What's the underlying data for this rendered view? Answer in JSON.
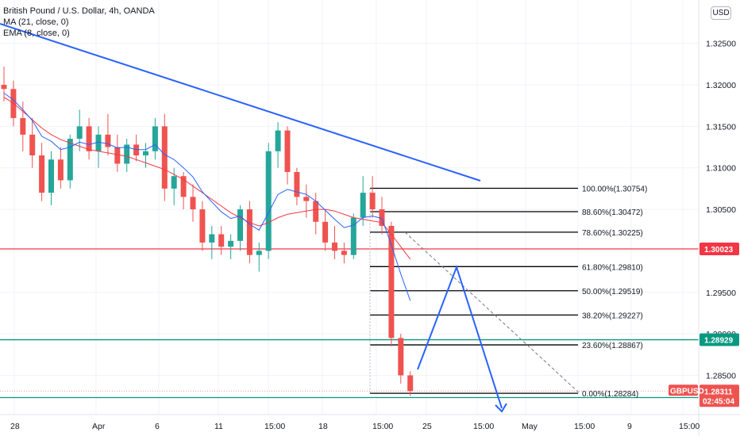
{
  "legend": {
    "symbol": "British Pound / U.S. Dollar, 4h, OANDA",
    "ma": "MA (21, close, 0)",
    "ema": "EMA (8, close, 0)"
  },
  "currency_button": "USD",
  "colors": {
    "up": "#26a69a",
    "down": "#ef5350",
    "ma": "#f23645",
    "ema": "#2962ff",
    "trendline": "#2962ff",
    "resistance": "#f23645",
    "support": "#089981",
    "fib": "#000000",
    "projection": "#2962ff"
  },
  "chart_data": {
    "type": "candlestick",
    "title": "British Pound / U.S. Dollar, 4h, OANDA",
    "ylim": [
      1.2775,
      1.3275
    ],
    "y_ticks": [
      "1.32500",
      "1.32000",
      "1.31500",
      "1.31000",
      "1.30500",
      "1.30000",
      "1.29500",
      "1.29000",
      "1.28500"
    ],
    "x_ticks": [
      "28",
      "Apr",
      "6",
      "11",
      "15:00",
      "18",
      "15:00",
      "25",
      "15:00",
      "May",
      "15:00",
      "9",
      "15:00"
    ],
    "indicators": [
      "MA (21, close, 0)",
      "EMA (8, close, 0)"
    ],
    "candles": [
      {
        "o": 1.32,
        "h": 1.3222,
        "l": 1.318,
        "c": 1.3195
      },
      {
        "o": 1.3195,
        "h": 1.3205,
        "l": 1.315,
        "c": 1.316
      },
      {
        "o": 1.316,
        "h": 1.318,
        "l": 1.312,
        "c": 1.314
      },
      {
        "o": 1.314,
        "h": 1.316,
        "l": 1.31,
        "c": 1.3115
      },
      {
        "o": 1.3115,
        "h": 1.313,
        "l": 1.306,
        "c": 1.307
      },
      {
        "o": 1.307,
        "h": 1.312,
        "l": 1.3055,
        "c": 1.311
      },
      {
        "o": 1.311,
        "h": 1.3125,
        "l": 1.3075,
        "c": 1.3085
      },
      {
        "o": 1.3085,
        "h": 1.314,
        "l": 1.3075,
        "c": 1.3135
      },
      {
        "o": 1.3135,
        "h": 1.317,
        "l": 1.312,
        "c": 1.315
      },
      {
        "o": 1.315,
        "h": 1.316,
        "l": 1.311,
        "c": 1.312
      },
      {
        "o": 1.312,
        "h": 1.315,
        "l": 1.31,
        "c": 1.314
      },
      {
        "o": 1.314,
        "h": 1.3165,
        "l": 1.3115,
        "c": 1.3125
      },
      {
        "o": 1.3125,
        "h": 1.314,
        "l": 1.3095,
        "c": 1.3105
      },
      {
        "o": 1.3105,
        "h": 1.3135,
        "l": 1.3095,
        "c": 1.3128
      },
      {
        "o": 1.3128,
        "h": 1.314,
        "l": 1.3108,
        "c": 1.3115
      },
      {
        "o": 1.3115,
        "h": 1.313,
        "l": 1.31,
        "c": 1.312
      },
      {
        "o": 1.312,
        "h": 1.316,
        "l": 1.311,
        "c": 1.315
      },
      {
        "o": 1.315,
        "h": 1.3165,
        "l": 1.306,
        "c": 1.3075
      },
      {
        "o": 1.3075,
        "h": 1.31,
        "l": 1.3055,
        "c": 1.309
      },
      {
        "o": 1.309,
        "h": 1.3095,
        "l": 1.305,
        "c": 1.3065
      },
      {
        "o": 1.3065,
        "h": 1.308,
        "l": 1.3035,
        "c": 1.305
      },
      {
        "o": 1.305,
        "h": 1.306,
        "l": 1.3,
        "c": 1.301
      },
      {
        "o": 1.301,
        "h": 1.303,
        "l": 1.299,
        "c": 1.302
      },
      {
        "o": 1.302,
        "h": 1.303,
        "l": 1.2995,
        "c": 1.3005
      },
      {
        "o": 1.3005,
        "h": 1.302,
        "l": 1.299,
        "c": 1.3012
      },
      {
        "o": 1.3012,
        "h": 1.3055,
        "l": 1.3,
        "c": 1.305
      },
      {
        "o": 1.305,
        "h": 1.306,
        "l": 1.2985,
        "c": 1.2995
      },
      {
        "o": 1.2995,
        "h": 1.301,
        "l": 1.2975,
        "c": 1.3
      },
      {
        "o": 1.3,
        "h": 1.313,
        "l": 1.299,
        "c": 1.312
      },
      {
        "o": 1.312,
        "h": 1.3155,
        "l": 1.31,
        "c": 1.3145
      },
      {
        "o": 1.3145,
        "h": 1.315,
        "l": 1.308,
        "c": 1.3095
      },
      {
        "o": 1.3095,
        "h": 1.31,
        "l": 1.3055,
        "c": 1.3065
      },
      {
        "o": 1.3065,
        "h": 1.308,
        "l": 1.304,
        "c": 1.306
      },
      {
        "o": 1.306,
        "h": 1.307,
        "l": 1.302,
        "c": 1.3035
      },
      {
        "o": 1.3035,
        "h": 1.305,
        "l": 1.3,
        "c": 1.301
      },
      {
        "o": 1.301,
        "h": 1.303,
        "l": 1.299,
        "c": 1.3
      },
      {
        "o": 1.3,
        "h": 1.301,
        "l": 1.2985,
        "c": 1.2995
      },
      {
        "o": 1.2995,
        "h": 1.3045,
        "l": 1.299,
        "c": 1.304
      },
      {
        "o": 1.304,
        "h": 1.309,
        "l": 1.303,
        "c": 1.307
      },
      {
        "o": 1.307,
        "h": 1.309,
        "l": 1.304,
        "c": 1.305
      },
      {
        "o": 1.305,
        "h": 1.3065,
        "l": 1.302,
        "c": 1.303
      },
      {
        "o": 1.303,
        "h": 1.3035,
        "l": 1.2885,
        "c": 1.2895
      },
      {
        "o": 1.2895,
        "h": 1.29,
        "l": 1.284,
        "c": 1.285
      },
      {
        "o": 1.285,
        "h": 1.2855,
        "l": 1.2825,
        "c": 1.2831
      }
    ],
    "ma_values": [
      1.3185,
      1.3178,
      1.3168,
      1.3158,
      1.3148,
      1.314,
      1.3134,
      1.313,
      1.3126,
      1.3122,
      1.312,
      1.3118,
      1.3116,
      1.3114,
      1.311,
      1.3106,
      1.3102,
      1.3098,
      1.3092,
      1.3086,
      1.3078,
      1.307,
      1.3062,
      1.3054,
      1.3046,
      1.304,
      1.3034,
      1.303,
      1.3034,
      1.304,
      1.3044,
      1.3046,
      1.3048,
      1.305,
      1.305,
      1.3048,
      1.3044,
      1.304,
      1.3038,
      1.3036,
      1.3034,
      1.302,
      1.3005,
      1.299
    ],
    "ema_values": [
      1.319,
      1.3182,
      1.317,
      1.3157,
      1.3138,
      1.3132,
      1.3122,
      1.3125,
      1.3131,
      1.3128,
      1.3131,
      1.3129,
      1.3124,
      1.3125,
      1.3122,
      1.3122,
      1.3128,
      1.3116,
      1.311,
      1.31,
      1.3089,
      1.3071,
      1.3059,
      1.3047,
      1.3039,
      1.3042,
      1.3032,
      1.3025,
      1.3046,
      1.3068,
      1.3074,
      1.3071,
      1.3068,
      1.306,
      1.3049,
      1.3038,
      1.3028,
      1.3031,
      1.304,
      1.3042,
      1.3039,
      1.3007,
      1.2972,
      1.294
    ],
    "fib_levels": [
      {
        "label": "100.00%(1.30754)",
        "price": 1.30754
      },
      {
        "label": "88.60%(1.30472)",
        "price": 1.30472
      },
      {
        "label": "78.60%(1.30225)",
        "price": 1.30225
      },
      {
        "label": "61.80%(1.29810)",
        "price": 1.2981
      },
      {
        "label": "50.00%(1.29519)",
        "price": 1.29519
      },
      {
        "label": "38.20%(1.29227)",
        "price": 1.29227
      },
      {
        "label": "23.60%(1.28867)",
        "price": 1.28867
      },
      {
        "label": "0.00%(1.28284)",
        "price": 1.28284
      }
    ],
    "horizontal_lines": [
      {
        "price": 1.30023,
        "label": "1.30023",
        "kind": "resistance"
      },
      {
        "price": 1.28929,
        "label": "1.28929",
        "kind": "support"
      },
      {
        "price": 1.28232,
        "label": "1.28232",
        "kind": "support"
      }
    ],
    "last_price": {
      "symbol": "GBPUSD",
      "price": "1.28311",
      "countdown": "02:45:04"
    }
  }
}
